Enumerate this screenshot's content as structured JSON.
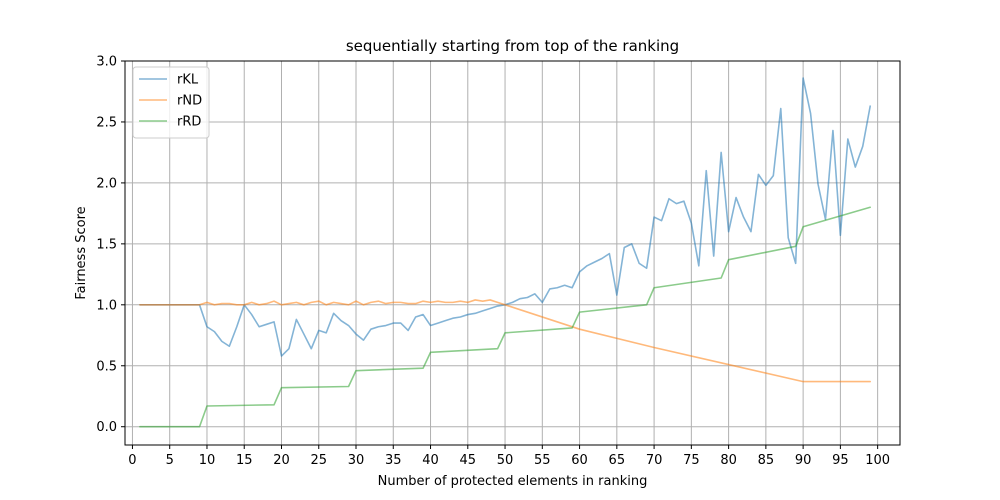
{
  "chart_data": {
    "type": "line",
    "title": "sequentially starting from top of the ranking",
    "xlabel": "Number of protected elements in ranking",
    "ylabel": "Fairness Score",
    "xlim": [
      -1,
      103
    ],
    "ylim": [
      -0.15,
      3.0
    ],
    "xticks": [
      0,
      5,
      10,
      15,
      20,
      25,
      30,
      35,
      40,
      45,
      50,
      55,
      60,
      65,
      70,
      75,
      80,
      85,
      90,
      95,
      100
    ],
    "yticks": [
      0.0,
      0.5,
      1.0,
      1.5,
      2.0,
      2.5,
      3.0
    ],
    "grid": true,
    "legend_position": "top-left",
    "series": [
      {
        "name": "rKL",
        "color": "#1f77b4",
        "x": [
          1,
          2,
          3,
          4,
          5,
          6,
          7,
          8,
          9,
          10,
          11,
          12,
          13,
          14,
          15,
          16,
          17,
          18,
          19,
          20,
          21,
          22,
          23,
          24,
          25,
          26,
          27,
          28,
          29,
          30,
          31,
          32,
          33,
          34,
          35,
          36,
          37,
          38,
          39,
          40,
          41,
          42,
          43,
          44,
          45,
          46,
          47,
          48,
          49,
          50,
          51,
          52,
          53,
          54,
          55,
          56,
          57,
          58,
          59,
          60,
          61,
          62,
          63,
          64,
          65,
          66,
          67,
          68,
          69,
          70,
          71,
          72,
          73,
          74,
          75,
          76,
          77,
          78,
          79,
          80,
          81,
          82,
          83,
          84,
          85,
          86,
          87,
          88,
          89,
          90,
          91,
          92,
          93,
          94,
          95,
          96,
          97,
          98,
          99
        ],
        "values": [
          1.0,
          1.0,
          1.0,
          1.0,
          1.0,
          1.0,
          1.0,
          1.0,
          1.0,
          0.82,
          0.78,
          0.7,
          0.66,
          0.82,
          1.0,
          0.92,
          0.82,
          0.84,
          0.86,
          0.58,
          0.64,
          0.88,
          0.76,
          0.64,
          0.79,
          0.77,
          0.93,
          0.87,
          0.83,
          0.76,
          0.71,
          0.8,
          0.82,
          0.83,
          0.85,
          0.85,
          0.79,
          0.9,
          0.92,
          0.83,
          0.85,
          0.87,
          0.89,
          0.9,
          0.92,
          0.93,
          0.95,
          0.97,
          0.99,
          1.0,
          1.02,
          1.05,
          1.06,
          1.09,
          1.02,
          1.13,
          1.14,
          1.16,
          1.14,
          1.27,
          1.32,
          1.35,
          1.38,
          1.42,
          1.08,
          1.47,
          1.5,
          1.34,
          1.3,
          1.72,
          1.69,
          1.87,
          1.83,
          1.85,
          1.67,
          1.32,
          2.1,
          1.4,
          2.25,
          1.6,
          1.88,
          1.72,
          1.6,
          2.07,
          1.98,
          2.06,
          2.61,
          1.55,
          1.34,
          2.86,
          2.57,
          1.99,
          1.7,
          2.43,
          1.57,
          2.36,
          2.13,
          2.3,
          2.63
        ]
      },
      {
        "name": "rND",
        "color": "#ff7f0e",
        "x": [
          1,
          2,
          3,
          4,
          5,
          6,
          7,
          8,
          9,
          10,
          11,
          12,
          13,
          14,
          15,
          16,
          17,
          18,
          19,
          20,
          21,
          22,
          23,
          24,
          25,
          26,
          27,
          28,
          29,
          30,
          31,
          32,
          33,
          34,
          35,
          36,
          37,
          38,
          39,
          40,
          41,
          42,
          43,
          44,
          45,
          46,
          47,
          48,
          49,
          50,
          60,
          70,
          80,
          90,
          99
        ],
        "values": [
          1.0,
          1.0,
          1.0,
          1.0,
          1.0,
          1.0,
          1.0,
          1.0,
          1.0,
          1.02,
          1.0,
          1.01,
          1.01,
          1.0,
          1.0,
          1.02,
          1.0,
          1.01,
          1.03,
          1.0,
          1.01,
          1.02,
          1.0,
          1.02,
          1.03,
          1.0,
          1.02,
          1.01,
          1.0,
          1.03,
          1.0,
          1.02,
          1.03,
          1.01,
          1.02,
          1.02,
          1.01,
          1.01,
          1.03,
          1.02,
          1.03,
          1.02,
          1.02,
          1.03,
          1.02,
          1.04,
          1.03,
          1.04,
          1.02,
          1.0,
          0.8,
          0.65,
          0.51,
          0.37,
          0.37
        ]
      },
      {
        "name": "rRD",
        "color": "#2ca02c",
        "x": [
          1,
          9,
          10,
          19,
          20,
          29,
          30,
          39,
          40,
          49,
          50,
          59,
          60,
          69,
          70,
          79,
          80,
          89,
          90,
          99
        ],
        "values": [
          0.0,
          0.0,
          0.17,
          0.18,
          0.32,
          0.33,
          0.46,
          0.48,
          0.61,
          0.64,
          0.77,
          0.81,
          0.94,
          1.0,
          1.14,
          1.22,
          1.37,
          1.48,
          1.64,
          1.8
        ]
      }
    ]
  }
}
